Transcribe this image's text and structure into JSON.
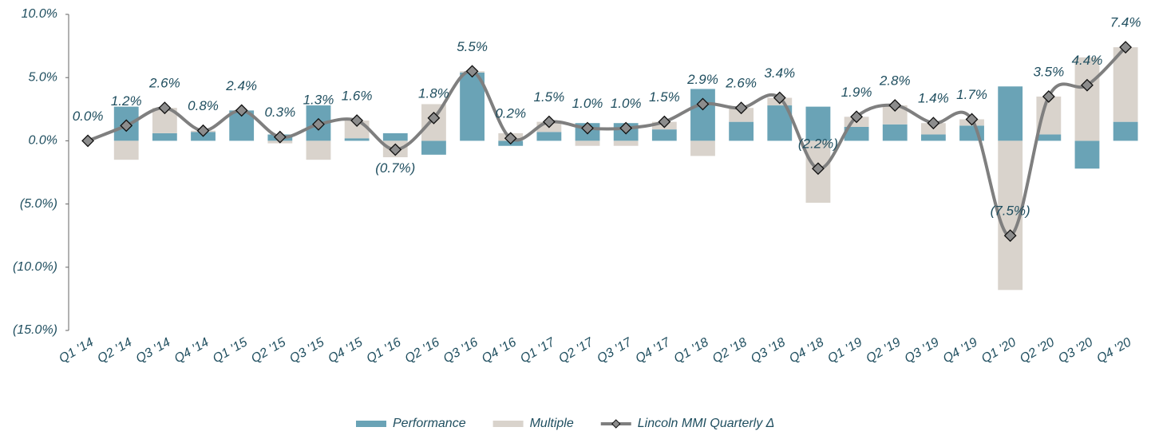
{
  "chart_data": {
    "type": "combo",
    "categories": [
      "Q1 '14",
      "Q2 '14",
      "Q3 '14",
      "Q4 '14",
      "Q1 '15",
      "Q2 '15",
      "Q3 '15",
      "Q4 '15",
      "Q1 '16",
      "Q2 '16",
      "Q3 '16",
      "Q4 '16",
      "Q1 '17",
      "Q2 '17",
      "Q3 '17",
      "Q4 '17",
      "Q1 '18",
      "Q2 '18",
      "Q3 '18",
      "Q4 '18",
      "Q1 '19",
      "Q2 '19",
      "Q3 '19",
      "Q4 '19",
      "Q1 '20",
      "Q2 '20",
      "Q3 '20",
      "Q4 '20"
    ],
    "series": [
      {
        "name": "Performance",
        "type": "bar",
        "color": "#6aa3b6",
        "values": [
          0,
          2.7,
          0.6,
          0.7,
          2.4,
          0.5,
          2.8,
          0.2,
          0.6,
          -1.1,
          5.4,
          -0.4,
          0.7,
          1.4,
          1.4,
          0.9,
          4.1,
          1.5,
          2.8,
          2.7,
          1.1,
          1.3,
          0.5,
          1.2,
          4.3,
          0.5,
          -2.2,
          1.5
        ]
      },
      {
        "name": "Multiple",
        "type": "bar",
        "color": "#d9d3cc",
        "values": [
          0,
          -1.5,
          2.0,
          0.1,
          0,
          -0.2,
          -1.5,
          1.4,
          -1.3,
          2.9,
          0.1,
          0.6,
          0.8,
          -0.4,
          -0.4,
          0.6,
          -1.2,
          1.1,
          0.6,
          -4.9,
          0.8,
          1.5,
          0.9,
          0.5,
          -11.8,
          3.0,
          6.6,
          5.9
        ]
      },
      {
        "name": "Lincoln MMI Quarterly Δ",
        "type": "line",
        "color": "#7f7f7f",
        "marker_color": "#8c8c8c",
        "values": [
          0.0,
          1.2,
          2.6,
          0.8,
          2.4,
          0.3,
          1.3,
          1.6,
          -0.7,
          1.8,
          5.5,
          0.2,
          1.5,
          1.0,
          1.0,
          1.5,
          2.9,
          2.6,
          3.4,
          -2.2,
          1.9,
          2.8,
          1.4,
          1.7,
          -7.5,
          3.5,
          4.4,
          7.4
        ],
        "value_labels": [
          "0.0%",
          "1.2%",
          "2.6%",
          "0.8%",
          "2.4%",
          "0.3%",
          "1.3%",
          "1.6%",
          "(0.7%)",
          "1.8%",
          "5.5%",
          "0.2%",
          "1.5%",
          "1.0%",
          "1.0%",
          "1.5%",
          "2.9%",
          "2.6%",
          "3.4%",
          "(2.2%)",
          "1.9%",
          "2.8%",
          "1.4%",
          "1.7%",
          "(7.5%)",
          "3.5%",
          "4.4%",
          "7.4%"
        ]
      }
    ],
    "ylim": [
      -15,
      10
    ],
    "yticks": [
      {
        "value": -15,
        "label": "(15.0%)"
      },
      {
        "value": -10,
        "label": "(10.0%)"
      },
      {
        "value": -5,
        "label": "(5.0%)"
      },
      {
        "value": 0,
        "label": "0.0%"
      },
      {
        "value": 5,
        "label": "5.0%"
      },
      {
        "value": 10,
        "label": "10.0%"
      }
    ],
    "grid": false,
    "legend": "bottom"
  }
}
